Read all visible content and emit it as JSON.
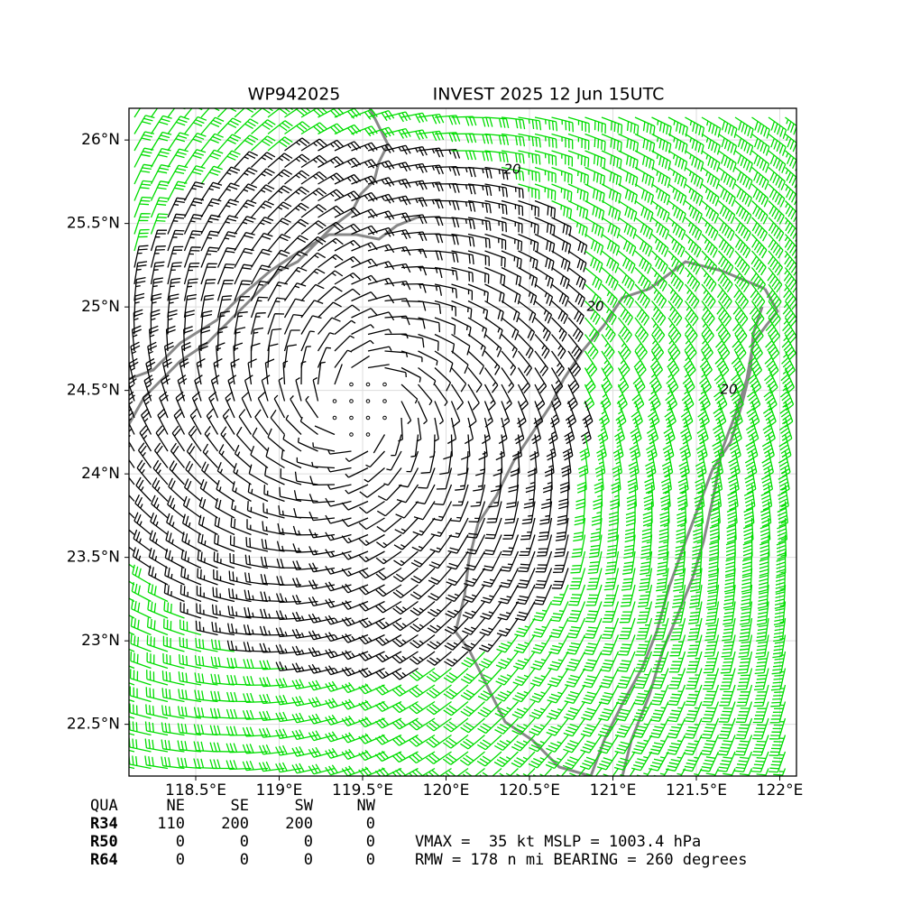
{
  "map": {
    "title_left": "WP942025",
    "title_right": "INVEST 2025 12 Jun 15UTC",
    "xlim": [
      118.1,
      122.1
    ],
    "ylim": [
      22.19,
      26.19
    ],
    "xticks": [
      {
        "value": 118.5,
        "label": "118.5°E"
      },
      {
        "value": 119,
        "label": "119°E"
      },
      {
        "value": 119.5,
        "label": "119.5°E"
      },
      {
        "value": 120,
        "label": "120°E"
      },
      {
        "value": 120.5,
        "label": "120.5°E"
      },
      {
        "value": 121,
        "label": "121°E"
      },
      {
        "value": 121.5,
        "label": "121.5°E"
      },
      {
        "value": 122,
        "label": "122°E"
      }
    ],
    "yticks": [
      {
        "value": 22.5,
        "label": "22.5°N"
      },
      {
        "value": 23,
        "label": "23°N"
      },
      {
        "value": 23.5,
        "label": "23.5°N"
      },
      {
        "value": 24,
        "label": "24°N"
      },
      {
        "value": 24.5,
        "label": "24.5°N"
      },
      {
        "value": 25,
        "label": "25°N"
      },
      {
        "value": 25.5,
        "label": "25.5°N"
      },
      {
        "value": 26,
        "label": "26°N"
      }
    ],
    "contour_labels": [
      "20",
      "20",
      "20"
    ]
  },
  "table": {
    "header": [
      "QUA",
      "NE",
      "SE",
      "SW",
      "NW"
    ],
    "rows": [
      [
        "R34",
        "110",
        "200",
        "200",
        "0"
      ],
      [
        "R50",
        "0",
        "0",
        "0",
        "0"
      ],
      [
        "R64",
        "0",
        "0",
        "0",
        "0"
      ]
    ]
  },
  "info": [
    "VMAX =  35 kt MSLP = 1003.4 hPa",
    "RMW = 178 n mi BEARING = 260 degrees"
  ]
}
